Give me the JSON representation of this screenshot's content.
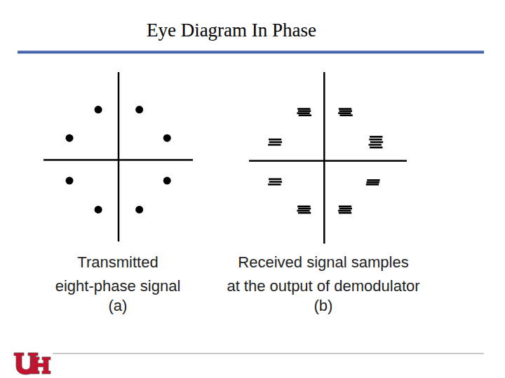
{
  "slide": {
    "title": "Eye Diagram In Phase"
  },
  "chart_data": [
    {
      "type": "scatter",
      "xlabel": "Transmitted\neight-phase signal",
      "annotations": [
        "(a)"
      ],
      "marker": "dot",
      "color": "#000000",
      "tick_labels": false,
      "xlim": [
        -1.4,
        1.4
      ],
      "ylim": [
        -1.5,
        1.6
      ],
      "x": [
        -0.38,
        0.39,
        -0.92,
        0.91,
        -0.92,
        0.91,
        -0.38,
        0.39
      ],
      "y": [
        0.92,
        0.92,
        0.4,
        0.4,
        -0.38,
        -0.38,
        -0.91,
        -0.91
      ]
    },
    {
      "type": "scatter",
      "xlabel": "Received signal samples\nat the output of demodulator",
      "annotations": [
        "(b)"
      ],
      "marker": "dash",
      "color": "#000000",
      "tick_labels": false,
      "xlim": [
        -1.4,
        1.55
      ],
      "ylim": [
        -1.55,
        1.65
      ],
      "x": [
        -0.38,
        -0.37,
        -0.39,
        -0.36,
        0.39,
        0.4,
        0.38,
        0.41,
        -0.92,
        -0.91,
        -0.93,
        0.97,
        0.96,
        0.98,
        0.95,
        0.97,
        -0.92,
        -0.91,
        -0.93,
        0.92,
        0.91,
        0.9,
        -0.38,
        -0.37,
        -0.39,
        -0.37,
        0.39,
        0.4,
        0.38,
        0.39
      ],
      "y": [
        0.97,
        0.93,
        0.89,
        0.85,
        0.97,
        0.93,
        0.89,
        0.85,
        0.4,
        0.35,
        0.3,
        0.45,
        0.4,
        0.35,
        0.3,
        0.25,
        -0.34,
        -0.39,
        -0.44,
        -0.36,
        -0.4,
        -0.44,
        -0.85,
        -0.89,
        -0.93,
        -0.97,
        -0.85,
        -0.89,
        -0.93,
        -0.97
      ]
    }
  ]
}
